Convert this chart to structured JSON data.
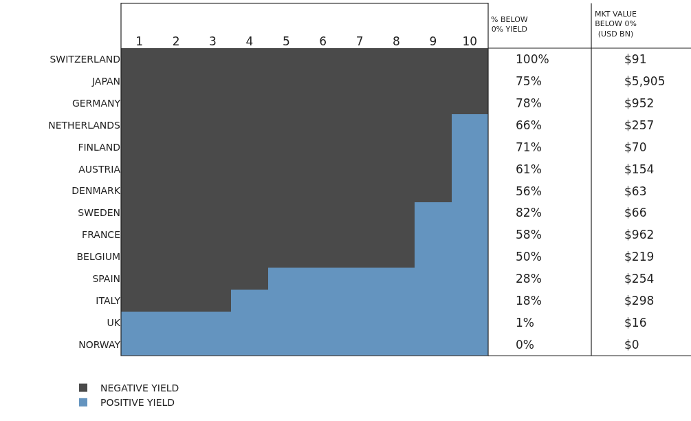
{
  "chart_data": {
    "type": "bar",
    "orientation": "horizontal",
    "stacked": true,
    "categories": [
      "SWITZERLAND",
      "JAPAN",
      "GERMANY",
      "NETHERLANDS",
      "FINLAND",
      "AUSTRIA",
      "DENMARK",
      "SWEDEN",
      "FRANCE",
      "BELGIUM",
      "SPAIN",
      "ITALY",
      "UK",
      "NORWAY"
    ],
    "series": [
      {
        "name": "NEGATIVE YIELD",
        "color": "#4a4a4a",
        "values": [
          10,
          10,
          10,
          9,
          9,
          9,
          9,
          8,
          8,
          8,
          4,
          3,
          0,
          0
        ]
      },
      {
        "name": "POSITIVE YIELD",
        "color": "#6494bf",
        "values": [
          0,
          0,
          0,
          1,
          1,
          1,
          1,
          2,
          2,
          2,
          6,
          7,
          10,
          10
        ]
      }
    ],
    "xlim": [
      0,
      10
    ],
    "xticks": [
      {
        "value": 0.5,
        "label": "1"
      },
      {
        "value": 1.5,
        "label": "2"
      },
      {
        "value": 2.5,
        "label": "3"
      },
      {
        "value": 3.5,
        "label": "4"
      },
      {
        "value": 4.5,
        "label": "5"
      },
      {
        "value": 5.5,
        "label": "6"
      },
      {
        "value": 6.5,
        "label": "7"
      },
      {
        "value": 7.5,
        "label": "8"
      },
      {
        "value": 8.5,
        "label": "9"
      },
      {
        "value": 9.5,
        "label": "10"
      }
    ],
    "legend": "bottom left",
    "annotations": [
      "% BELOW\n0% YIELD",
      "MKT VALUE\nBELOW 0%\n(USD BN)",
      "100%",
      "$91",
      "75%",
      "$5,905",
      "78%",
      "$952",
      "66%",
      "$257",
      "71%",
      "$70",
      "61%",
      "$154",
      "56%",
      "$63",
      "82%",
      "$66",
      "58%",
      "$962",
      "50%",
      "$219",
      "28%",
      "$254",
      "18%",
      "$298",
      "1%",
      "$16",
      "0%",
      "$0"
    ]
  }
}
